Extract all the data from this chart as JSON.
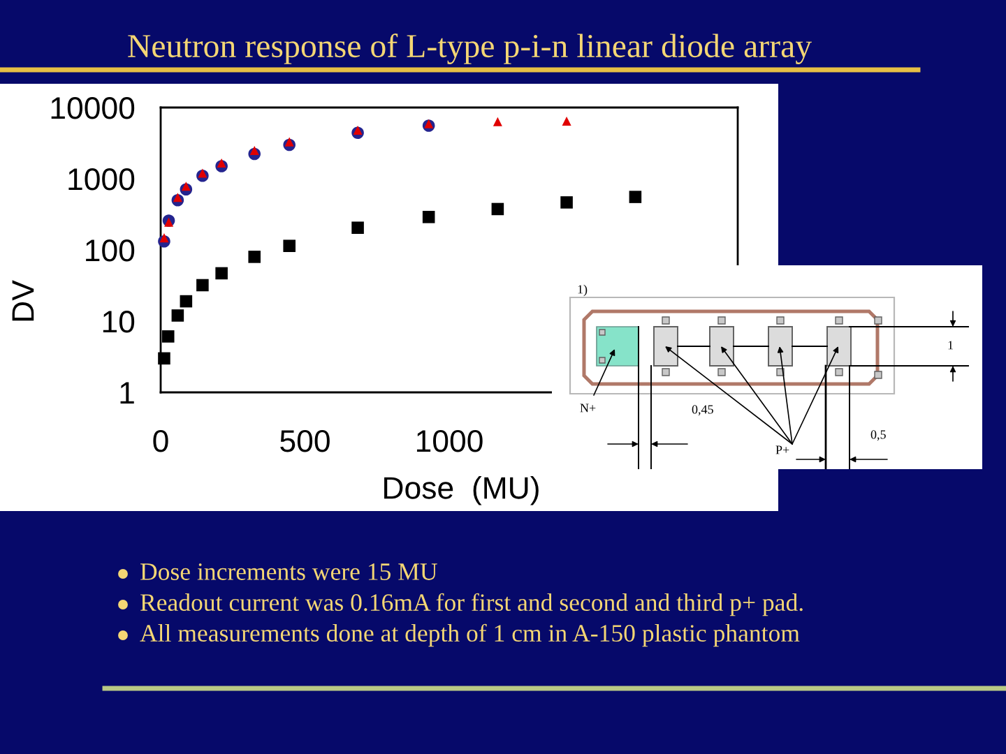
{
  "chart_data": {
    "type": "scatter",
    "title": "Neutron response of L-type p-i-n linear diode array",
    "xlabel": "Dose  (MU)",
    "ylabel": "DV",
    "log": "y",
    "xlim": [
      0,
      2000
    ],
    "xticks": [
      0,
      500,
      1000
    ],
    "ylim": [
      1,
      10000
    ],
    "yticks": [
      1,
      10,
      100,
      1000,
      10000
    ],
    "series": [
      {
        "color": "#000000",
        "marker": "square",
        "x": [
          12,
          26,
          59,
          88,
          145,
          211,
          325,
          446,
          683,
          929,
          1168,
          1407,
          1645
        ],
        "values": [
          3.0,
          6.1,
          12,
          19,
          32,
          47,
          80,
          114,
          205,
          290,
          375,
          465,
          555
        ]
      },
      {
        "color": "#24248f",
        "marker": "circle",
        "x": [
          12,
          28,
          59,
          88,
          145,
          211,
          325,
          446,
          683,
          929
        ],
        "values": [
          132,
          258,
          500,
          710,
          1100,
          1500,
          2230,
          2990,
          4420,
          5560
        ]
      },
      {
        "color": "#e00000",
        "marker": "triangle",
        "x": [
          12,
          28,
          59,
          88,
          145,
          211,
          325,
          446,
          683,
          929,
          1168,
          1407
        ],
        "values": [
          148,
          246,
          547,
          783,
          1200,
          1660,
          2500,
          3300,
          4800,
          5930,
          6330,
          6440
        ]
      }
    ],
    "annotations": [
      "Dose increments were 15 MU",
      "Readout current was 0.16mA for first and second and third p+ pad.",
      "All measurements done at depth of 1 cm in A-150 plastic phantom",
      "1)",
      "N+",
      "0,45",
      "P+",
      "0,5",
      "1"
    ]
  }
}
